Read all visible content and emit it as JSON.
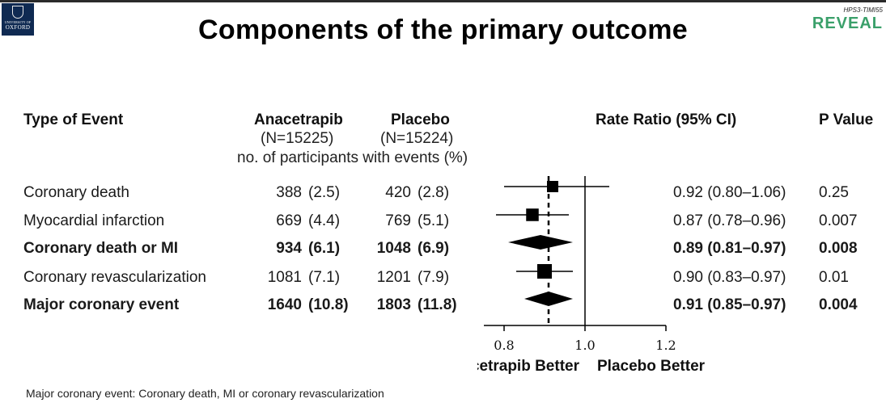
{
  "slide": {
    "title": "Components of the primary outcome",
    "logo_left": {
      "line1": "UNIVERSITY OF",
      "line2": "OXFORD"
    },
    "logo_right": {
      "line1": "HPS3-TIMI55",
      "line2": "REVEAL"
    },
    "footnote": "Major coronary event: Coronary death, MI or coronary revascularization"
  },
  "headers": {
    "type": "Type of Event",
    "arm1": "Anacetrapib",
    "arm1_n": "(N=15225)",
    "arm2": "Placebo",
    "arm2_n": "(N=15224)",
    "events_note": "no. of participants with events (%)",
    "rr": "Rate Ratio (95% CI)",
    "p": "P Value"
  },
  "rows": [
    {
      "label": "Coronary death",
      "a_n": "388",
      "a_pct": "(2.5)",
      "p_n": "420",
      "p_pct": "(2.8)",
      "ci": "0.92 (0.80–1.06)",
      "pval": "0.25",
      "bold": false
    },
    {
      "label": "Myocardial infarction",
      "a_n": "669",
      "a_pct": "(4.4)",
      "p_n": "769",
      "p_pct": "(5.1)",
      "ci": "0.87 (0.78–0.96)",
      "pval": "0.007",
      "bold": false
    },
    {
      "label": "Coronary death or MI",
      "a_n": "934",
      "a_pct": "(6.1)",
      "p_n": "1048",
      "p_pct": "(6.9)",
      "ci": "0.89 (0.81–0.97)",
      "pval": "0.008",
      "bold": true
    },
    {
      "label": "Coronary revascularization",
      "a_n": "1081",
      "a_pct": "(7.1)",
      "p_n": "1201",
      "p_pct": "(7.9)",
      "ci": "0.90 (0.83–0.97)",
      "pval": "0.01",
      "bold": false
    },
    {
      "label": "Major coronary event",
      "a_n": "1640",
      "a_pct": "(10.8)",
      "p_n": "1803",
      "p_pct": "(11.8)",
      "ci": "0.91 (0.85–0.97)",
      "pval": "0.004",
      "bold": true
    }
  ],
  "chart_data": {
    "type": "forest",
    "xlim": [
      0.75,
      1.2
    ],
    "xticks": [
      0.8,
      1.0,
      1.2
    ],
    "xtick_labels": [
      "0.8",
      "1.0",
      "1.2"
    ],
    "reference_line": 1.0,
    "overall_estimate_line": 0.91,
    "left_label": "Anacetrapib Better",
    "right_label": "Placebo Better",
    "points": [
      {
        "label": "Coronary death",
        "estimate": 0.92,
        "lower": 0.8,
        "upper": 1.06,
        "shape": "square",
        "weight": 0.6
      },
      {
        "label": "Myocardial infarction",
        "estimate": 0.87,
        "lower": 0.78,
        "upper": 0.96,
        "shape": "square",
        "weight": 0.75
      },
      {
        "label": "Coronary death or MI",
        "estimate": 0.89,
        "lower": 0.81,
        "upper": 0.97,
        "shape": "diamond",
        "weight": 1
      },
      {
        "label": "Coronary revascularization",
        "estimate": 0.9,
        "lower": 0.83,
        "upper": 0.97,
        "shape": "square",
        "weight": 1
      },
      {
        "label": "Major coronary event",
        "estimate": 0.91,
        "lower": 0.85,
        "upper": 0.97,
        "shape": "diamond",
        "weight": 1
      }
    ]
  }
}
